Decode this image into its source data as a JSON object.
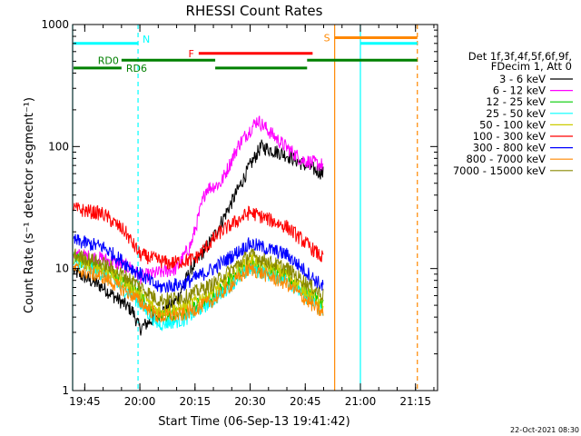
{
  "chart_data": {
    "type": "line",
    "title": "RHESSI Count Rates",
    "xlabel": "Start Time (06-Sep-13 19:41:42)",
    "ylabel": "Count Rate (s⁻¹ detector segment⁻¹)",
    "yscale": "log",
    "ylim": [
      1,
      1000
    ],
    "xlim": [
      "19:41:42",
      "21:21:00"
    ],
    "x_ticks": [
      "19:45",
      "20:00",
      "20:15",
      "20:30",
      "20:45",
      "21:00",
      "21:15"
    ],
    "y_ticks": [
      "1",
      "10",
      "100",
      "1000"
    ],
    "grid": false,
    "legend_position": "right",
    "legend_header": [
      "Det 1f,3f,4f,5f,6f,9f,",
      "FDecim 1, Att 0"
    ],
    "footer_timestamp": "22-Oct-2021 08:30",
    "series": [
      {
        "name": "3 - 6 keV",
        "color": "#000000",
        "x": [
          "19:42",
          "19:50",
          "19:58",
          "20:00",
          "20:10",
          "20:14",
          "20:20",
          "20:25",
          "20:30",
          "20:33",
          "20:40",
          "20:45",
          "20:50"
        ],
        "y": [
          9.5,
          7,
          4.5,
          3.2,
          5.5,
          10,
          18,
          35,
          70,
          100,
          85,
          70,
          60
        ]
      },
      {
        "name": "6 - 12 keV",
        "color": "#ff00ff",
        "x": [
          "19:42",
          "19:50",
          "19:58",
          "20:00",
          "20:10",
          "20:14",
          "20:18",
          "20:22",
          "20:27",
          "20:32",
          "20:38",
          "20:44",
          "20:50"
        ],
        "y": [
          13,
          12,
          10,
          8.5,
          10,
          16,
          45,
          50,
          105,
          165,
          110,
          78,
          70
        ]
      },
      {
        "name": "12 - 25 keV",
        "color": "#00cc00",
        "x": [
          "19:42",
          "19:50",
          "19:58",
          "20:05",
          "20:12",
          "20:20",
          "20:30",
          "20:40",
          "20:50"
        ],
        "y": [
          12,
          10,
          7,
          4,
          4.3,
          6,
          11,
          8.5,
          5
        ]
      },
      {
        "name": "25 - 50 keV",
        "color": "#00ffff",
        "x": [
          "19:42",
          "19:50",
          "19:58",
          "20:05",
          "20:12",
          "20:20",
          "20:30",
          "20:40",
          "20:50"
        ],
        "y": [
          11,
          9,
          6,
          3.5,
          3.8,
          5.5,
          10,
          8,
          4.5
        ]
      },
      {
        "name": "50 - 100 keV",
        "color": "#cccc00",
        "x": [
          "19:42",
          "19:50",
          "19:58",
          "20:05",
          "20:12",
          "20:20",
          "20:30",
          "20:40",
          "20:50"
        ],
        "y": [
          12,
          10,
          7,
          4.5,
          4.8,
          6.5,
          12,
          9,
          5
        ]
      },
      {
        "name": "100 - 300 keV",
        "color": "#ff0000",
        "x": [
          "19:42",
          "19:50",
          "19:56",
          "20:00",
          "20:08",
          "20:15",
          "20:22",
          "20:30",
          "20:40",
          "20:50"
        ],
        "y": [
          31,
          28,
          20,
          13,
          11,
          12,
          20,
          29,
          22,
          12
        ]
      },
      {
        "name": "300 - 800 keV",
        "color": "#0000ff",
        "x": [
          "19:42",
          "19:50",
          "19:58",
          "20:05",
          "20:12",
          "20:20",
          "20:30",
          "20:40",
          "20:50"
        ],
        "y": [
          17,
          15,
          10,
          7,
          7.5,
          10,
          16,
          13,
          7
        ]
      },
      {
        "name": "800 - 7000 keV",
        "color": "#ff8800",
        "x": [
          "19:42",
          "19:50",
          "19:58",
          "20:05",
          "20:12",
          "20:20",
          "20:30",
          "20:40",
          "20:50"
        ],
        "y": [
          10,
          8.5,
          6,
          4,
          4.2,
          5.5,
          10,
          7.5,
          4.2
        ]
      },
      {
        "name": "7000 - 15000 keV",
        "color": "#888800",
        "x": [
          "19:42",
          "19:50",
          "19:58",
          "20:05",
          "20:12",
          "20:20",
          "20:30",
          "20:40",
          "20:50"
        ],
        "y": [
          13,
          11,
          8,
          5.5,
          5.8,
          7.5,
          13,
          10,
          6
        ]
      }
    ],
    "flag_bars": [
      {
        "label": "N",
        "color": "#00ffff",
        "label_at": "start",
        "segments": [
          [
            "19:41:42",
            "19:59:30"
          ],
          [
            "21:00:00",
            "21:15:30"
          ]
        ],
        "level": 700
      },
      {
        "label": "F",
        "color": "#ff0000",
        "label_at": "start",
        "segments": [
          [
            "20:16:00",
            "20:47:00"
          ]
        ],
        "level": 580
      },
      {
        "label": "S",
        "color": "#ff8800",
        "label_at": "start",
        "segments": [
          [
            "20:53:00",
            "21:15:30"
          ]
        ],
        "level": 780
      },
      {
        "label": "RD0",
        "color": "#008000",
        "label_at": "middle",
        "segments": [
          [
            "19:55:00",
            "20:20:30"
          ],
          [
            "20:45:30",
            "21:15:30"
          ]
        ],
        "level": 510
      },
      {
        "label": "RD6",
        "color": "#008000",
        "label_at": "end",
        "segments": [
          [
            "19:41:42",
            "19:55:00"
          ],
          [
            "20:20:30",
            "20:45:30"
          ]
        ],
        "level": 440
      }
    ],
    "vertical_markers": [
      {
        "time": "19:41:42",
        "color": "#00ffff",
        "style": "solid"
      },
      {
        "time": "19:59:30",
        "color": "#00ffff",
        "style": "dashed"
      },
      {
        "time": "20:53:00",
        "color": "#ff8800",
        "style": "solid"
      },
      {
        "time": "21:00:00",
        "color": "#00ffff",
        "style": "solid"
      },
      {
        "time": "21:15:30",
        "color": "#ff8800",
        "style": "dashed"
      }
    ]
  }
}
